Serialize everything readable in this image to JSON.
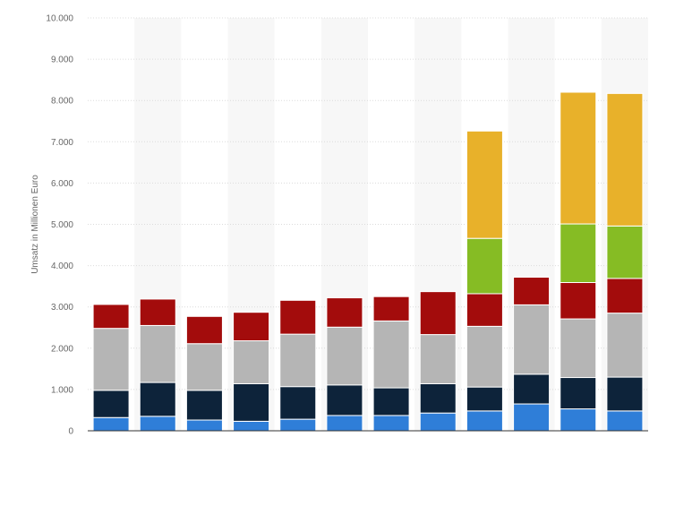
{
  "chart_data": {
    "type": "bar",
    "stacked": true,
    "title": "",
    "xlabel": "",
    "ylabel": "Umsatz in Millionen Euro",
    "ylim": [
      0,
      10000
    ],
    "ytick_values": [
      0,
      1000,
      2000,
      3000,
      4000,
      5000,
      6000,
      7000,
      8000,
      9000,
      10000
    ],
    "ytick_labels": [
      "0",
      "1.000",
      "2.000",
      "3.000",
      "4.000",
      "5.000",
      "6.000",
      "7.000",
      "8.000",
      "9.000",
      "10.000"
    ],
    "grid": true,
    "legend": "none",
    "categories": [
      "",
      "",
      "",
      "",
      "",
      "",
      "",
      "",
      "",
      "",
      "",
      ""
    ],
    "series": [
      {
        "color": "#2f7ed8",
        "values": [
          320,
          350,
          260,
          230,
          280,
          370,
          370,
          430,
          480,
          650,
          530,
          480
        ]
      },
      {
        "color": "#0d233a",
        "values": [
          660,
          820,
          720,
          910,
          790,
          740,
          670,
          710,
          580,
          720,
          760,
          820
        ]
      },
      {
        "color": "#b5b5b5",
        "values": [
          1500,
          1380,
          1130,
          1040,
          1270,
          1400,
          1620,
          1190,
          1470,
          1680,
          1420,
          1550
        ]
      },
      {
        "color": "#a30c0c",
        "values": [
          580,
          640,
          660,
          690,
          820,
          710,
          590,
          1040,
          790,
          670,
          880,
          840
        ]
      },
      {
        "color": "#86bc24",
        "values": [
          0,
          0,
          0,
          0,
          0,
          0,
          0,
          0,
          1340,
          0,
          1420,
          1270
        ]
      },
      {
        "color": "#e8b12a",
        "values": [
          0,
          0,
          0,
          0,
          0,
          0,
          0,
          0,
          2600,
          0,
          3190,
          3210
        ]
      }
    ]
  }
}
